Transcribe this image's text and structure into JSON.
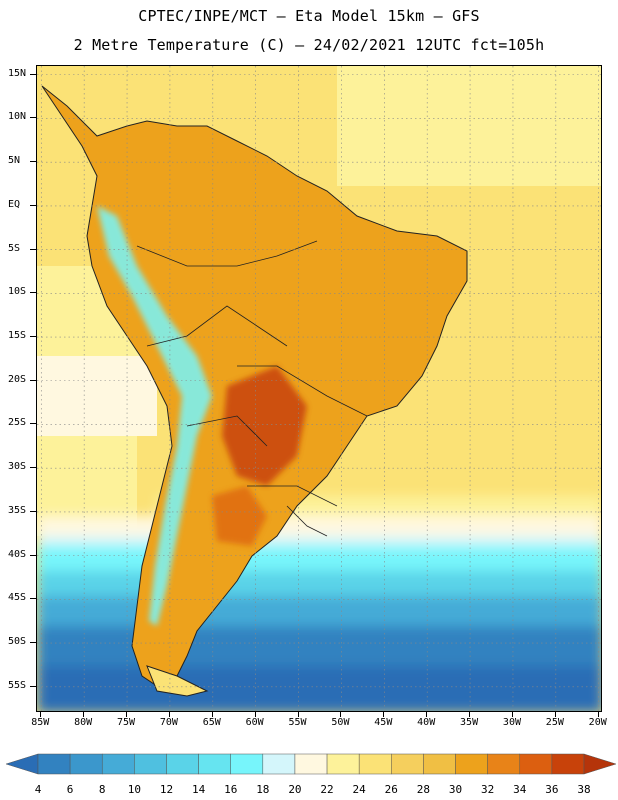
{
  "header": {
    "line1": "CPTEC/INPE/MCT –  Eta Model 15km – GFS",
    "line2": "2 Metre Temperature (C) – 24/02/2021 12UTC fct=105h"
  },
  "map": {
    "lat_labels": [
      "15N",
      "10N",
      "5N",
      "EQ",
      "5S",
      "10S",
      "15S",
      "20S",
      "25S",
      "30S",
      "35S",
      "40S",
      "45S",
      "50S",
      "55S"
    ],
    "lon_labels": [
      "85W",
      "80W",
      "75W",
      "70W",
      "65W",
      "60W",
      "55W",
      "50W",
      "45W",
      "40W",
      "35W",
      "30W",
      "25W",
      "20W"
    ],
    "lat_values": [
      15,
      10,
      5,
      0,
      -5,
      -10,
      -15,
      -20,
      -25,
      -30,
      -35,
      -40,
      -45,
      -50,
      -55
    ],
    "lon_values": [
      -85,
      -80,
      -75,
      -70,
      -65,
      -60,
      -55,
      -50,
      -45,
      -40,
      -35,
      -30,
      -25,
      -20
    ],
    "extent": {
      "lon_min": -85.5,
      "lon_max": -19.5,
      "lat_min": -58,
      "lat_max": 16
    },
    "grid_lines": true
  },
  "colorbar": {
    "labels": [
      "4",
      "6",
      "8",
      "10",
      "12",
      "14",
      "16",
      "18",
      "20",
      "22",
      "24",
      "26",
      "28",
      "30",
      "32",
      "34",
      "36",
      "38"
    ],
    "colors": [
      "#2a6db5",
      "#3282c0",
      "#3b97cc",
      "#45abd7",
      "#4fc0e0",
      "#5ad3e8",
      "#66e4f0",
      "#77f5fb",
      "#d4f6fb",
      "#fff8e0",
      "#fdf29a",
      "#fbe276",
      "#f5cf5d",
      "#f0bf44",
      "#eda21c",
      "#e88318",
      "#dc5f10",
      "#c8420a",
      "#b5340a"
    ]
  }
}
